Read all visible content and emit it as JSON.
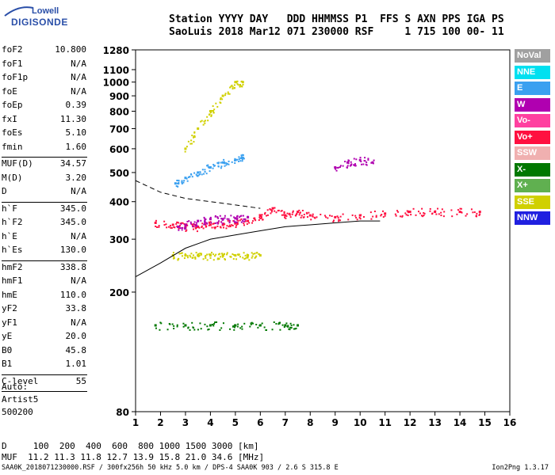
{
  "logo": {
    "line1": "Lowell",
    "line2": "DIGISONDE"
  },
  "header": {
    "line1": "Station YYYY DAY   DDD HHMMSS P1  FFS S AXN PPS IGA PS",
    "line2": "SaoLuis 2018 Mar12 071 230000 RSF     1 715 100 00- 11"
  },
  "params": [
    {
      "k": "foF2",
      "v": "10.800"
    },
    {
      "k": "foF1",
      "v": "N/A"
    },
    {
      "k": "foF1p",
      "v": "N/A"
    },
    {
      "k": "foE",
      "v": "N/A"
    },
    {
      "k": "foEp",
      "v": "0.39"
    },
    {
      "k": "fxI",
      "v": "11.30"
    },
    {
      "k": "foEs",
      "v": "5.10"
    },
    {
      "k": "fmin",
      "v": "1.60"
    },
    {
      "k": "MUF(D)",
      "v": "34.57"
    },
    {
      "k": "M(D)",
      "v": "3.20"
    },
    {
      "k": "D",
      "v": "N/A"
    },
    {
      "k": "h`F",
      "v": "345.0"
    },
    {
      "k": "h`F2",
      "v": "345.0"
    },
    {
      "k": "h`E",
      "v": "N/A"
    },
    {
      "k": "h`Es",
      "v": "130.0"
    },
    {
      "k": "hmF2",
      "v": "338.8"
    },
    {
      "k": "hmF1",
      "v": "N/A"
    },
    {
      "k": "hmE",
      "v": "110.0"
    },
    {
      "k": "yF2",
      "v": "33.8"
    },
    {
      "k": "yF1",
      "v": "N/A"
    },
    {
      "k": "yE",
      "v": "20.0"
    },
    {
      "k": "B0",
      "v": "45.8"
    },
    {
      "k": "B1",
      "v": "1.01"
    },
    {
      "k": "C-level",
      "v": "55"
    }
  ],
  "auto": {
    "l1": "Auto:",
    "l2": "Artist5",
    "l3": "500200"
  },
  "bottom": {
    "d_line": "D     100  200  400  600  800 1000 1500 3000 [km]",
    "muf_line": "MUF  11.2 11.3 11.8 12.7 13.9 15.8 21.0 34.6 [MHz]"
  },
  "footer": {
    "left": "SAA0K_2018071230000.RSF / 300fx256h 50 kHz 5.0 km / DPS-4 SAA0K 903 / 2.6 S 315.8 E",
    "right": "Ion2Png 1.3.17"
  },
  "legend": [
    {
      "label": "NoVal",
      "color": "#a0a0a0"
    },
    {
      "label": "NNE",
      "color": "#00e0f0"
    },
    {
      "label": "E",
      "color": "#3aa0f0"
    },
    {
      "label": "W",
      "color": "#b000b0"
    },
    {
      "label": "Vo-",
      "color": "#ff40a0"
    },
    {
      "label": "Vo+",
      "color": "#ff1040"
    },
    {
      "label": "SSW",
      "color": "#f0b0b0"
    },
    {
      "label": "X-",
      "color": "#007800"
    },
    {
      "label": "X+",
      "color": "#60b050"
    },
    {
      "label": "SSE",
      "color": "#d0d000"
    },
    {
      "label": "NNW",
      "color": "#2020e0"
    }
  ],
  "chart_data": {
    "type": "scatter",
    "xlim": [
      1,
      16
    ],
    "x_ticks": [
      "1",
      "2",
      "3",
      "4",
      "5",
      "6",
      "7",
      "8",
      "9",
      "10",
      "11",
      "12",
      "13",
      "14",
      "15",
      "16"
    ],
    "ylim": [
      80,
      1280
    ],
    "y_log": true,
    "y_ticks": [
      "80",
      "200",
      "300",
      "400",
      "500",
      "600",
      "700",
      "800",
      "900",
      "1000",
      "1100",
      "1280"
    ],
    "traces": [
      {
        "name": "ordinary trace",
        "color": "#ff1040",
        "x": [
          1.8,
          2.5,
          3.0,
          3.5,
          4.0,
          4.5,
          5.0,
          5.5,
          6.0,
          6.5,
          7.0,
          7.5,
          8.0,
          9.0,
          10.0,
          11.0,
          12.0,
          13.0,
          14.0,
          14.8
        ],
        "y": [
          340,
          335,
          330,
          330,
          335,
          335,
          340,
          345,
          360,
          380,
          360,
          370,
          360,
          355,
          360,
          365,
          370,
          370,
          370,
          370
        ]
      },
      {
        "name": "extraordinary trace",
        "color": "#b000b0",
        "x": [
          2.7,
          3.0,
          3.5,
          4.0,
          4.5,
          5.0,
          5.5
        ],
        "y": [
          330,
          335,
          345,
          350,
          350,
          352,
          355
        ]
      },
      {
        "name": "oblique W",
        "color": "#b000b0",
        "x": [
          9.0,
          9.5,
          10.0,
          10.5
        ],
        "y": [
          520,
          540,
          550,
          540
        ]
      },
      {
        "name": "E trace",
        "color": "#3aa0f0",
        "x": [
          2.6,
          3.0,
          3.5,
          4.0,
          4.5,
          5.0,
          5.3
        ],
        "y": [
          460,
          480,
          500,
          520,
          540,
          550,
          560
        ]
      },
      {
        "name": "SSE scatter",
        "color": "#d0d000",
        "x": [
          3.0,
          3.5,
          4.0,
          4.5,
          5.0,
          5.3
        ],
        "y": [
          600,
          700,
          800,
          900,
          1000,
          1000
        ]
      },
      {
        "name": "Es trace",
        "color": "#007800",
        "x": [
          1.8,
          3.0,
          4.0,
          5.0,
          6.0,
          7.0,
          7.5
        ],
        "y": [
          155,
          155,
          155,
          155,
          155,
          155,
          155
        ]
      },
      {
        "name": "2F trace",
        "color": "#d0d000",
        "x": [
          2.5,
          3.0,
          3.5,
          4.0,
          4.5,
          5.0,
          5.5,
          6.0
        ],
        "y": [
          265,
          265,
          265,
          265,
          265,
          265,
          265,
          265
        ]
      }
    ],
    "profile": {
      "x": [
        1.0,
        2.0,
        3.0,
        4.0,
        5.0,
        6.0,
        7.0,
        8.0,
        9.0,
        10.0,
        10.8
      ],
      "y": [
        225,
        250,
        280,
        300,
        310,
        320,
        330,
        335,
        340,
        345,
        345
      ]
    },
    "profile2": {
      "x": [
        1.0,
        2.0,
        3.0,
        4.0,
        5.0,
        6.0
      ],
      "y": [
        470,
        430,
        410,
        400,
        390,
        380
      ]
    }
  }
}
